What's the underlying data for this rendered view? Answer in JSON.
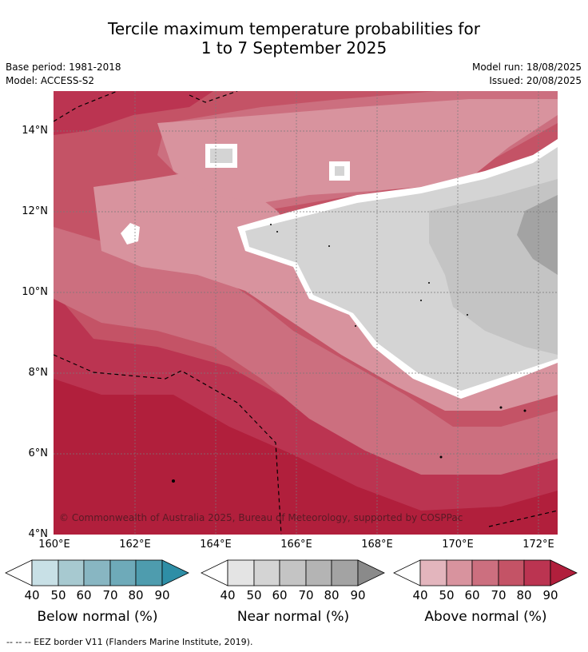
{
  "title_line1": "Tercile maximum temperature probabilities for",
  "title_line2": "1 to 7 September 2025",
  "base_period": "Base period: 1981-2018",
  "model": "Model: ACCESS-S2",
  "model_run": "Model run: 18/08/2025",
  "issued": "Issued: 20/08/2025",
  "copyright": "© Commonwealth of Australia 2025, Bureau of Meteorology, supported by COSPPac",
  "y_ticks": [
    "14°N",
    "12°N",
    "10°N",
    "8°N",
    "6°N",
    "4°N"
  ],
  "x_ticks": [
    "160°E",
    "162°E",
    "164°E",
    "166°E",
    "168°E",
    "170°E",
    "172°E"
  ],
  "legends": [
    {
      "title": "Below normal (%)",
      "labels": [
        "40",
        "50",
        "60",
        "70",
        "80",
        "90"
      ],
      "colors": [
        "#c8e0e6",
        "#a7c9d0",
        "#88b6c2",
        "#6eaab9",
        "#4e9cae",
        "#2e8ea6"
      ]
    },
    {
      "title": "Near normal (%)",
      "labels": [
        "40",
        "50",
        "60",
        "70",
        "80",
        "90"
      ],
      "colors": [
        "#e4e4e4",
        "#d4d4d4",
        "#c4c4c4",
        "#b4b4b4",
        "#a3a3a3",
        "#8a8a8a"
      ]
    },
    {
      "title": "Above normal (%)",
      "labels": [
        "40",
        "50",
        "60",
        "70",
        "80",
        "90"
      ],
      "colors": [
        "#e3b5bd",
        "#d8939e",
        "#cc6f7f",
        "#c45366",
        "#bb3451",
        "#b11f3c"
      ]
    }
  ],
  "footer": "--  --  -- EEZ border V11 (Flanders Marine Institute, 2019)."
}
